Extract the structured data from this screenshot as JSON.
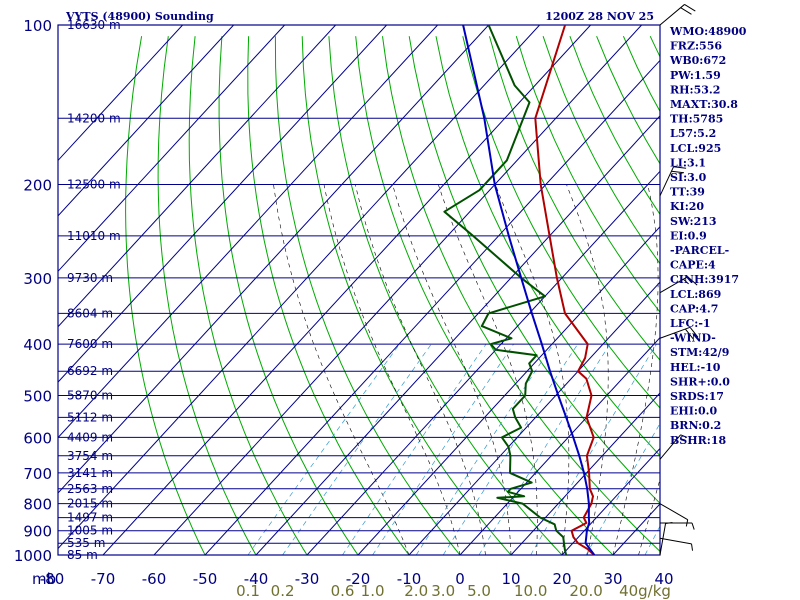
{
  "header": {
    "title": "VYTS (48900) Sounding",
    "time": "1200Z 28 NOV 25"
  },
  "indices": [
    "WMO:48900",
    "FRZ:556",
    "WB0:672",
    "PW:1.59",
    "RH:53.2",
    "MAXT:30.8",
    "TH:5785",
    "L57:5.2",
    "LCL:925",
    "LI:3.1",
    "SI:3.0",
    "TT:39",
    "KI:20",
    "SW:213",
    "EI:0.9",
    "-PARCEL-",
    "CAPE:4",
    "CINH:3917",
    "LCL:869",
    "CAP:4.7",
    "LFC:-1",
    "-WIND-",
    "STM:42/9",
    "HEL:-10",
    "SHR+:0.0",
    "SRDS:17",
    "EHI:0.0",
    "BRN:0.2",
    "BSHR:18"
  ],
  "colors": {
    "frame": "#00008b",
    "dry_adiabat": "#00aa00",
    "moist_adiabat": "#000000",
    "mixing_ratio": "#3399cc",
    "temperature": "#b00000",
    "dewpoint": "#005000",
    "parcel": "#0000c0",
    "wind": "#000000"
  },
  "chart_data": {
    "type": "skew-t",
    "x_unit": "°C",
    "y_unit": "mb",
    "ylim": [
      1000,
      100
    ],
    "pressure_ticks": [
      "100",
      "200",
      "300",
      "400",
      "500",
      "600",
      "700",
      "800",
      "900",
      "1000"
    ],
    "pressure_axis_label": "mb",
    "temperature_ticks": [
      "-80",
      "-70",
      "-60",
      "-50",
      "-40",
      "-30",
      "-20",
      "-10",
      "0",
      "10",
      "20",
      "30",
      "40"
    ],
    "mixing_ratio_labels": [
      "0.1",
      "0.2",
      "0.6",
      "1.0",
      "2.0",
      "3.0",
      "5.0",
      "10.0",
      "20.0",
      "40g/kg"
    ],
    "height_labels": [
      {
        "p": 100,
        "label": "16630 m"
      },
      {
        "p": 150,
        "label": "14200 m"
      },
      {
        "p": 200,
        "label": "12500 m"
      },
      {
        "p": 250,
        "label": "11010 m"
      },
      {
        "p": 300,
        "label": "9730 m"
      },
      {
        "p": 350,
        "label": "8604 m"
      },
      {
        "p": 400,
        "label": "7600 m"
      },
      {
        "p": 450,
        "label": "6692 m"
      },
      {
        "p": 500,
        "label": "5870 m"
      },
      {
        "p": 550,
        "label": "5112 m"
      },
      {
        "p": 600,
        "label": "4409 m"
      },
      {
        "p": 650,
        "label": "3754 m"
      },
      {
        "p": 700,
        "label": "3141 m"
      },
      {
        "p": 750,
        "label": "2563 m"
      },
      {
        "p": 800,
        "label": "2015 m"
      },
      {
        "p": 850,
        "label": "1497 m"
      },
      {
        "p": 900,
        "label": "1005 m"
      },
      {
        "p": 950,
        "label": "535 m"
      },
      {
        "p": 1000,
        "label": "85 m"
      }
    ],
    "series": [
      {
        "name": "temperature",
        "points": [
          [
            1002,
            26.5
          ],
          [
            975,
            24
          ],
          [
            950,
            21
          ],
          [
            925,
            19
          ],
          [
            900,
            17.5
          ],
          [
            880,
            18.5
          ],
          [
            870,
            19
          ],
          [
            850,
            17.5
          ],
          [
            800,
            16.5
          ],
          [
            775,
            15.5
          ],
          [
            750,
            13.5
          ],
          [
            700,
            10.5
          ],
          [
            650,
            7
          ],
          [
            600,
            5
          ],
          [
            550,
            0
          ],
          [
            500,
            -3
          ],
          [
            465,
            -7
          ],
          [
            450,
            -10
          ],
          [
            425,
            -11
          ],
          [
            400,
            -13
          ],
          [
            350,
            -23
          ],
          [
            300,
            -31
          ],
          [
            250,
            -40
          ],
          [
            200,
            -51
          ],
          [
            150,
            -64
          ],
          [
            100,
            -75
          ]
        ]
      },
      {
        "name": "dewpoint",
        "points": [
          [
            1000,
            20.8
          ],
          [
            975,
            19.5
          ],
          [
            925,
            17
          ],
          [
            900,
            14.5
          ],
          [
            875,
            13
          ],
          [
            850,
            9
          ],
          [
            800,
            3
          ],
          [
            780,
            -3
          ],
          [
            775,
            2
          ],
          [
            760,
            -2
          ],
          [
            750,
            -2
          ],
          [
            730,
            1
          ],
          [
            700,
            -5
          ],
          [
            650,
            -8
          ],
          [
            625,
            -10
          ],
          [
            600,
            -13
          ],
          [
            575,
            -11
          ],
          [
            550,
            -14
          ],
          [
            530,
            -16
          ],
          [
            500,
            -16
          ],
          [
            475,
            -18
          ],
          [
            450,
            -19
          ],
          [
            435,
            -21
          ],
          [
            420,
            -21
          ],
          [
            410,
            -30
          ],
          [
            400,
            -32
          ],
          [
            390,
            -29
          ],
          [
            370,
            -37
          ],
          [
            350,
            -38
          ],
          [
            325,
            -30
          ],
          [
            300,
            -38
          ],
          [
            250,
            -55
          ],
          [
            225,
            -65
          ],
          [
            205,
            -62
          ],
          [
            180,
            -62
          ],
          [
            140,
            -68
          ],
          [
            130,
            -74
          ],
          [
            100,
            -90
          ]
        ]
      },
      {
        "name": "parcel",
        "points": [
          [
            1002,
            26.5
          ],
          [
            950,
            22.5
          ],
          [
            900,
            20.5
          ],
          [
            869,
            19.5
          ],
          [
            850,
            18.5
          ],
          [
            800,
            16
          ],
          [
            750,
            13
          ],
          [
            700,
            9.5
          ],
          [
            650,
            5.5
          ],
          [
            600,
            1
          ],
          [
            550,
            -4
          ],
          [
            500,
            -9.5
          ],
          [
            450,
            -15.5
          ],
          [
            400,
            -22
          ],
          [
            350,
            -29.5
          ],
          [
            300,
            -38
          ],
          [
            250,
            -48
          ],
          [
            200,
            -60
          ],
          [
            150,
            -74
          ],
          [
            100,
            -95
          ]
        ]
      }
    ],
    "wind_barbs": [
      {
        "p": 100,
        "dir": 50,
        "spd": 20
      },
      {
        "p": 210,
        "dir": 25,
        "spd": 20
      },
      {
        "p": 320,
        "dir": 60,
        "spd": 15
      },
      {
        "p": 390,
        "dir": 70,
        "spd": 20
      },
      {
        "p": 660,
        "dir": 40,
        "spd": 5
      },
      {
        "p": 800,
        "dir": 120,
        "spd": 5
      },
      {
        "p": 870,
        "dir": 90,
        "spd": 5
      },
      {
        "p": 930,
        "dir": 100,
        "spd": 5
      },
      {
        "p": 1000,
        "dir": 10,
        "spd": 5
      }
    ]
  }
}
